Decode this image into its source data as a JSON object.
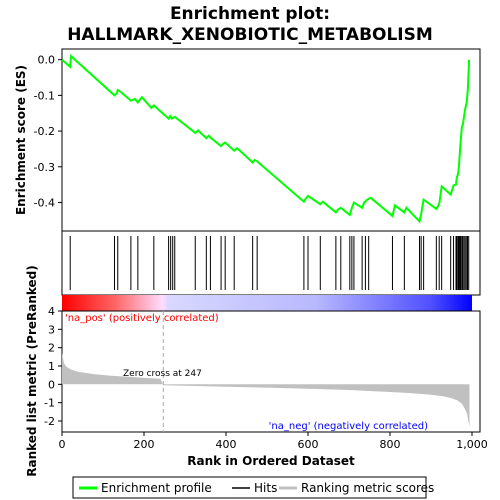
{
  "chart_data": {
    "type": "line",
    "title_line1": "Enrichment plot:",
    "title_line2": "HALLMARK_XENOBIOTIC_METABOLISM",
    "es_panel": {
      "ylabel": "Enrichment score (ES)",
      "ylim": [
        -0.48,
        0.03
      ],
      "yticks": [
        0.0,
        -0.1,
        -0.2,
        -0.3,
        -0.4
      ],
      "ytick_labels": [
        "0.0",
        "-0.1",
        "-0.2",
        "-0.3",
        "-0.4"
      ],
      "line_color": "#00ff00",
      "series": [
        {
          "x": [
            0,
            20,
            22,
            128,
            133,
            136,
            143,
            168,
            178,
            185,
            195,
            218,
            224,
            260,
            264,
            268,
            275,
            325,
            332,
            352,
            358,
            362,
            388,
            393,
            398,
            420,
            427,
            465,
            470,
            476,
            590,
            594,
            600,
            630,
            636,
            668,
            673,
            680,
            702,
            707,
            712,
            732,
            737,
            745,
            753,
            806,
            812,
            835,
            840,
            872,
            876,
            882,
            913,
            920,
            926,
            948,
            955,
            961,
            963,
            966,
            968,
            971,
            975,
            978,
            983,
            987,
            990,
            993
          ],
          "y": [
            0.0,
            -0.02,
            0.01,
            -0.1,
            -0.095,
            -0.085,
            -0.09,
            -0.115,
            -0.11,
            -0.12,
            -0.105,
            -0.135,
            -0.128,
            -0.165,
            -0.158,
            -0.165,
            -0.16,
            -0.205,
            -0.198,
            -0.22,
            -0.213,
            -0.218,
            -0.242,
            -0.236,
            -0.232,
            -0.255,
            -0.248,
            -0.288,
            -0.281,
            -0.285,
            -0.398,
            -0.39,
            -0.382,
            -0.405,
            -0.398,
            -0.428,
            -0.42,
            -0.415,
            -0.435,
            -0.415,
            -0.4,
            -0.415,
            -0.4,
            -0.392,
            -0.387,
            -0.438,
            -0.408,
            -0.428,
            -0.415,
            -0.453,
            -0.432,
            -0.392,
            -0.418,
            -0.405,
            -0.355,
            -0.378,
            -0.352,
            -0.35,
            -0.33,
            -0.32,
            -0.3,
            -0.25,
            -0.19,
            -0.18,
            -0.14,
            -0.12,
            -0.08,
            0.0
          ]
        }
      ]
    },
    "hits": [
      20,
      128,
      136,
      168,
      185,
      224,
      260,
      265,
      270,
      275,
      325,
      352,
      362,
      388,
      398,
      420,
      465,
      476,
      590,
      600,
      630,
      668,
      680,
      702,
      707,
      712,
      732,
      740,
      748,
      806,
      835,
      872,
      876,
      882,
      913,
      920,
      926,
      948,
      955,
      961,
      963,
      966,
      968,
      970,
      972,
      975,
      977,
      980,
      983,
      986,
      989,
      992
    ],
    "color_bar": {
      "positive_label": "'na_pos' (positively correlated)",
      "negative_label": "'na_neg' (negatively correlated)",
      "positive_color": "#ff0000",
      "negative_color": "#0000ff"
    },
    "metric_panel": {
      "ylabel": "Ranked list metric (PreRanked)",
      "ylim": [
        -2.6,
        4
      ],
      "yticks": [
        4,
        3,
        2,
        1,
        0,
        -1,
        -2
      ],
      "ytick_labels": [
        "4",
        "3",
        "2",
        "1",
        "0",
        "-1",
        "-2"
      ],
      "zero_cross_label": "Zero cross at 247",
      "zero_cross": 247,
      "fill_color": "#c0c0c0",
      "profile": {
        "rank": [
          0,
          5,
          10,
          20,
          40,
          80,
          120,
          160,
          200,
          240,
          247,
          300,
          400,
          500,
          600,
          700,
          800,
          850,
          900,
          930,
          950,
          965,
          975,
          982,
          988,
          991,
          994
        ],
        "metric": [
          1.7,
          1.15,
          0.98,
          0.82,
          0.68,
          0.55,
          0.47,
          0.41,
          0.35,
          0.3,
          -0.05,
          -0.08,
          -0.13,
          -0.18,
          -0.24,
          -0.31,
          -0.42,
          -0.48,
          -0.57,
          -0.65,
          -0.75,
          -0.88,
          -1.05,
          -1.3,
          -1.6,
          -2.0,
          -2.3
        ]
      }
    },
    "xaxis": {
      "xlabel": "Rank in Ordered Dataset",
      "xlim": [
        0,
        1000
      ],
      "xticks": [
        0,
        200,
        400,
        600,
        800,
        1000
      ],
      "xtick_labels": [
        "0",
        "200",
        "400",
        "600",
        "800",
        "1,000"
      ]
    },
    "legend": {
      "position": "bottom",
      "items": [
        {
          "label": "Enrichment profile",
          "color": "#00ff00",
          "kind": "line"
        },
        {
          "label": "Hits",
          "color": "#000000",
          "kind": "line"
        },
        {
          "label": "Ranking metric scores",
          "color": "#c0c0c0",
          "kind": "line"
        }
      ]
    }
  }
}
